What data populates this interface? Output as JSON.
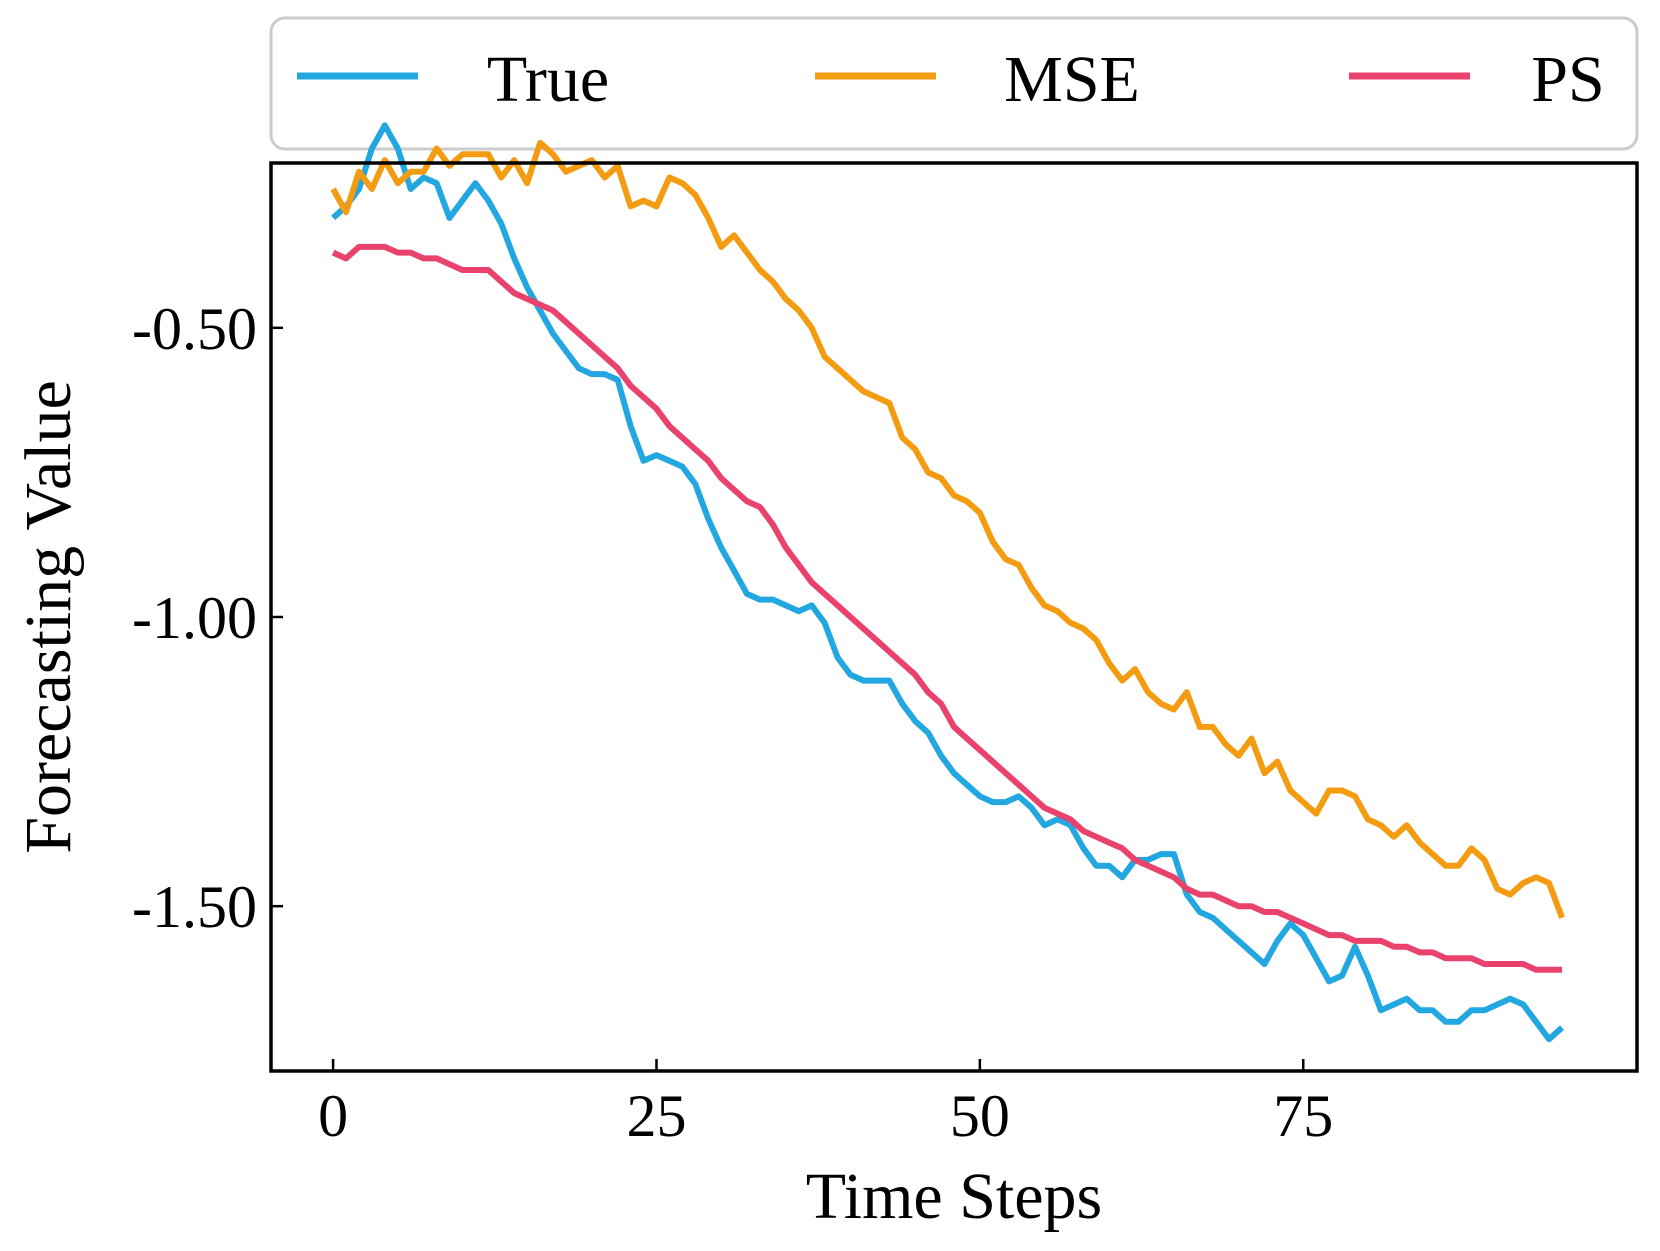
{
  "chart_data": {
    "type": "line",
    "title": "",
    "xlabel": "Time Steps",
    "ylabel": "Forecasting Value",
    "xlim": [
      -4.8,
      100.8
    ],
    "ylim": [
      -1.785,
      -0.215
    ],
    "xticks": [
      0,
      25,
      50,
      75
    ],
    "xtick_labels": [
      "0",
      "25",
      "50",
      "75"
    ],
    "yticks": [
      -0.5,
      -1.0,
      -1.5
    ],
    "ytick_labels": [
      "-0.50",
      "-1.00",
      "-1.50"
    ],
    "grid": false,
    "legend_position": "top, outside plot",
    "x": [
      0,
      1,
      2,
      3,
      4,
      5,
      6,
      7,
      8,
      9,
      10,
      11,
      12,
      13,
      14,
      15,
      16,
      17,
      18,
      19,
      20,
      21,
      22,
      23,
      24,
      25,
      26,
      27,
      28,
      29,
      30,
      31,
      32,
      33,
      34,
      35,
      36,
      37,
      38,
      39,
      40,
      41,
      42,
      43,
      44,
      45,
      46,
      47,
      48,
      49,
      50,
      51,
      52,
      53,
      54,
      55,
      56,
      57,
      58,
      59,
      60,
      61,
      62,
      63,
      64,
      65,
      66,
      67,
      68,
      69,
      70,
      71,
      72,
      73,
      74,
      75,
      76,
      77,
      78,
      79,
      80,
      81,
      82,
      83,
      84,
      85,
      86,
      87,
      88,
      89,
      90,
      91,
      92,
      93,
      94,
      95
    ],
    "series": [
      {
        "name": "True",
        "color": "#22a7e0",
        "values": [
          -0.31,
          -0.29,
          -0.26,
          -0.19,
          -0.15,
          -0.19,
          -0.26,
          -0.24,
          -0.25,
          -0.31,
          -0.28,
          -0.25,
          -0.28,
          -0.32,
          -0.38,
          -0.43,
          -0.47,
          -0.51,
          -0.54,
          -0.57,
          -0.58,
          -0.58,
          -0.59,
          -0.67,
          -0.73,
          -0.72,
          -0.73,
          -0.74,
          -0.77,
          -0.83,
          -0.88,
          -0.92,
          -0.96,
          -0.97,
          -0.97,
          -0.98,
          -0.99,
          -0.98,
          -1.01,
          -1.07,
          -1.1,
          -1.11,
          -1.11,
          -1.11,
          -1.15,
          -1.18,
          -1.2,
          -1.24,
          -1.27,
          -1.29,
          -1.31,
          -1.32,
          -1.32,
          -1.31,
          -1.33,
          -1.36,
          -1.35,
          -1.36,
          -1.4,
          -1.43,
          -1.43,
          -1.45,
          -1.42,
          -1.42,
          -1.41,
          -1.41,
          -1.48,
          -1.51,
          -1.52,
          -1.54,
          -1.56,
          -1.58,
          -1.6,
          -1.56,
          -1.53,
          -1.55,
          -1.59,
          -1.63,
          -1.62,
          -1.57,
          -1.62,
          -1.68,
          -1.67,
          -1.66,
          -1.68,
          -1.68,
          -1.7,
          -1.7,
          -1.68,
          -1.68,
          -1.67,
          -1.66,
          -1.67,
          -1.7,
          -1.73,
          -1.71
        ]
      },
      {
        "name": "MSE",
        "color": "#f39c12",
        "values": [
          -0.26,
          -0.3,
          -0.23,
          -0.26,
          -0.21,
          -0.25,
          -0.23,
          -0.23,
          -0.19,
          -0.22,
          -0.2,
          -0.2,
          -0.2,
          -0.24,
          -0.21,
          -0.25,
          -0.18,
          -0.2,
          -0.23,
          -0.22,
          -0.21,
          -0.24,
          -0.22,
          -0.29,
          -0.28,
          -0.29,
          -0.24,
          -0.25,
          -0.27,
          -0.31,
          -0.36,
          -0.34,
          -0.37,
          -0.4,
          -0.42,
          -0.45,
          -0.47,
          -0.5,
          -0.55,
          -0.57,
          -0.59,
          -0.61,
          -0.62,
          -0.63,
          -0.69,
          -0.71,
          -0.75,
          -0.76,
          -0.79,
          -0.8,
          -0.82,
          -0.87,
          -0.9,
          -0.91,
          -0.95,
          -0.98,
          -0.99,
          -1.01,
          -1.02,
          -1.04,
          -1.08,
          -1.11,
          -1.09,
          -1.13,
          -1.15,
          -1.16,
          -1.13,
          -1.19,
          -1.19,
          -1.22,
          -1.24,
          -1.21,
          -1.27,
          -1.25,
          -1.3,
          -1.32,
          -1.34,
          -1.3,
          -1.3,
          -1.31,
          -1.35,
          -1.36,
          -1.38,
          -1.36,
          -1.39,
          -1.41,
          -1.43,
          -1.43,
          -1.4,
          -1.42,
          -1.47,
          -1.48,
          -1.46,
          -1.45,
          -1.46,
          -1.52
        ]
      },
      {
        "name": "PS",
        "color": "#e8426d",
        "values": [
          -0.37,
          -0.38,
          -0.36,
          -0.36,
          -0.36,
          -0.37,
          -0.37,
          -0.38,
          -0.38,
          -0.39,
          -0.4,
          -0.4,
          -0.4,
          -0.42,
          -0.44,
          -0.45,
          -0.46,
          -0.47,
          -0.49,
          -0.51,
          -0.53,
          -0.55,
          -0.57,
          -0.6,
          -0.62,
          -0.64,
          -0.67,
          -0.69,
          -0.71,
          -0.73,
          -0.76,
          -0.78,
          -0.8,
          -0.81,
          -0.84,
          -0.88,
          -0.91,
          -0.94,
          -0.96,
          -0.98,
          -1.0,
          -1.02,
          -1.04,
          -1.06,
          -1.08,
          -1.1,
          -1.13,
          -1.15,
          -1.19,
          -1.21,
          -1.23,
          -1.25,
          -1.27,
          -1.29,
          -1.31,
          -1.33,
          -1.34,
          -1.35,
          -1.37,
          -1.38,
          -1.39,
          -1.4,
          -1.42,
          -1.43,
          -1.44,
          -1.45,
          -1.47,
          -1.48,
          -1.48,
          -1.49,
          -1.5,
          -1.5,
          -1.51,
          -1.51,
          -1.52,
          -1.53,
          -1.54,
          -1.55,
          -1.55,
          -1.56,
          -1.56,
          -1.56,
          -1.57,
          -1.57,
          -1.58,
          -1.58,
          -1.59,
          -1.59,
          -1.59,
          -1.6,
          -1.6,
          -1.6,
          -1.6,
          -1.61,
          -1.61,
          -1.61
        ]
      }
    ]
  }
}
